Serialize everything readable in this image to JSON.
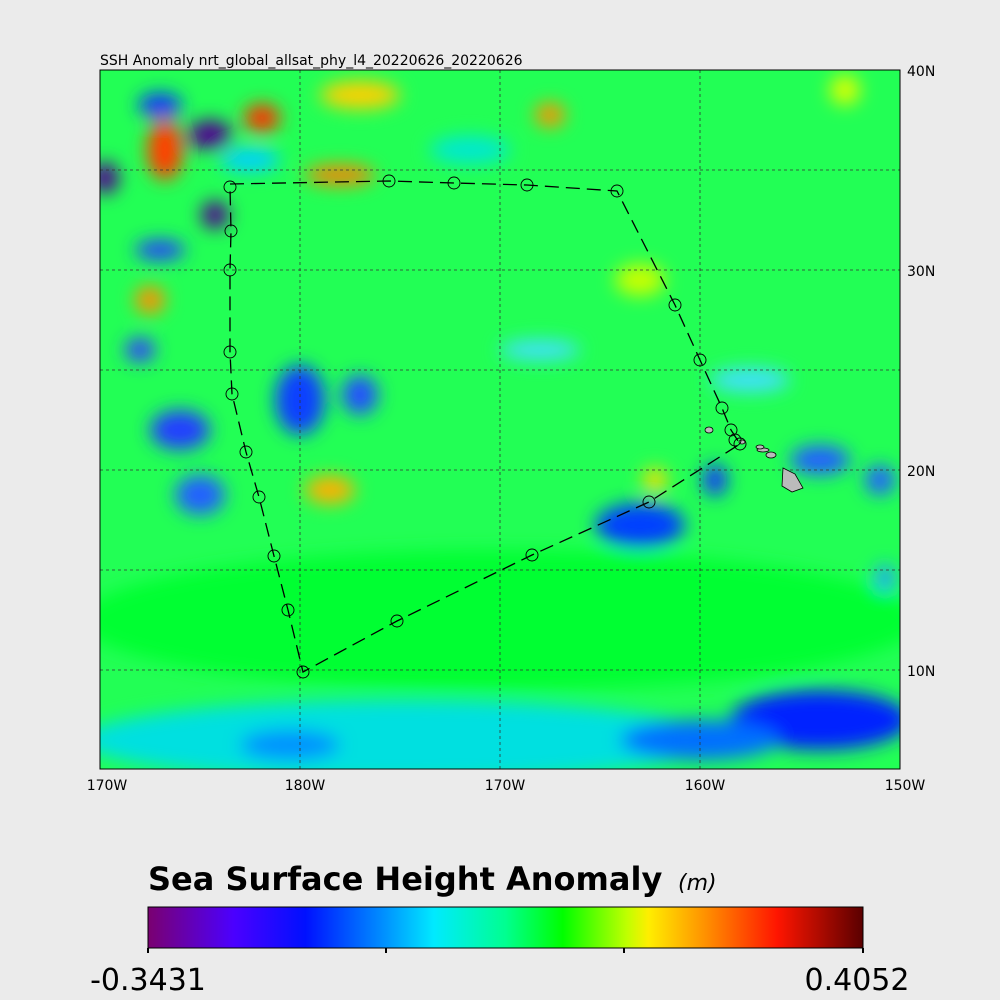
{
  "map": {
    "title": "SSH Anomaly nrt_global_allsat_phy_l4_20220626_20220626",
    "lon_labels": [
      "170W",
      "180W",
      "170W",
      "160W",
      "150W"
    ],
    "lat_labels": [
      "40N",
      "30N",
      "20N",
      "10N"
    ]
  },
  "colorbar": {
    "title": "Sea Surface Height Anomaly",
    "unit": "(m)",
    "min": -0.3431,
    "max": 0.4052
  }
}
